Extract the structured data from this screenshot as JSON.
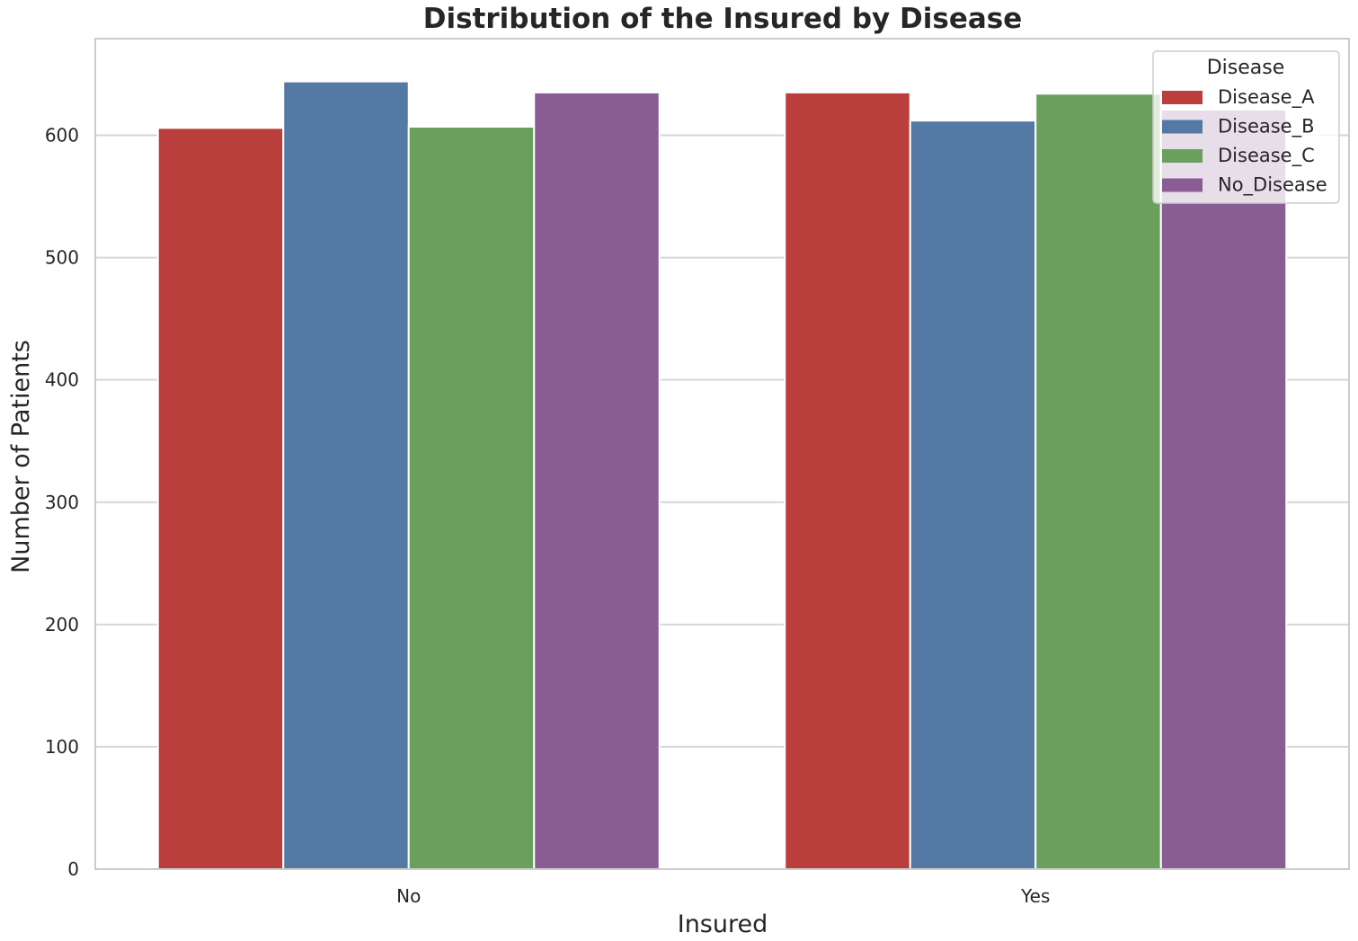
{
  "chart_data": {
    "type": "bar",
    "title": "Distribution of the Insured by Disease",
    "xlabel": "Insured",
    "ylabel": "Number of Patients",
    "categories": [
      "No",
      "Yes"
    ],
    "series": [
      {
        "name": "Disease_A",
        "color": "#b93e3c",
        "values": [
          606,
          635
        ]
      },
      {
        "name": "Disease_B",
        "color": "#5479a4",
        "values": [
          644,
          612
        ]
      },
      {
        "name": "Disease_C",
        "color": "#6b9f5d",
        "values": [
          607,
          634
        ]
      },
      {
        "name": "No_Disease",
        "color": "#895d94",
        "values": [
          635,
          621
        ]
      }
    ],
    "ylim": [
      0,
      679
    ],
    "yticks": [
      0,
      100,
      200,
      300,
      400,
      500,
      600
    ],
    "grid": true,
    "legend": {
      "title": "Disease",
      "position": "top-right"
    }
  }
}
